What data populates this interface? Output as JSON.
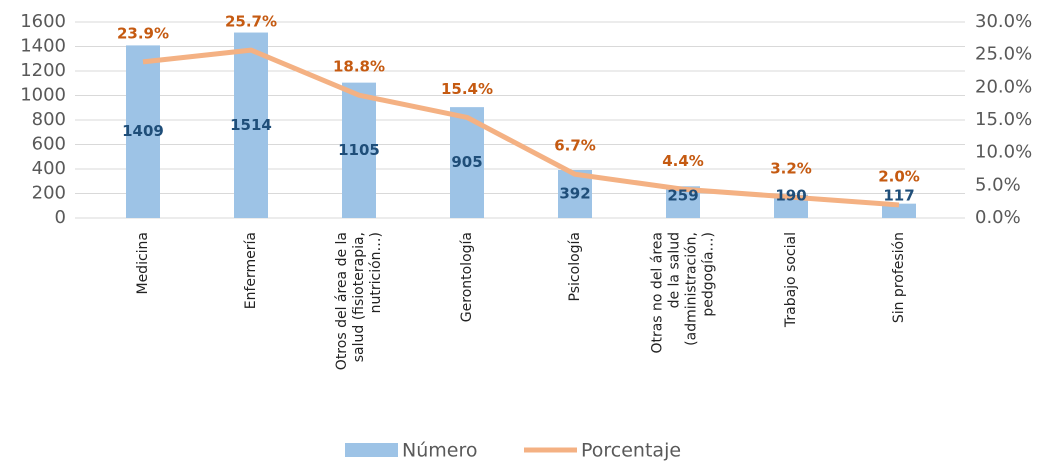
{
  "chart_data": {
    "type": "bar_line",
    "categories": [
      "Medicina",
      "Enfermería",
      "Otros del área de la\nsalud (fisioterapia,\nnutrición…)",
      "Gerontología",
      "Psicología",
      "Otras no del área\nde la salud\n(administración,\npedgogía…)",
      "Trabajo social",
      "Sin profesión"
    ],
    "series": [
      {
        "name": "Número",
        "color": "#9dc3e6",
        "type": "bar",
        "values": [
          1409,
          1514,
          1105,
          905,
          392,
          259,
          190,
          117
        ]
      },
      {
        "name": "Porcentaje",
        "color": "#f4b183",
        "type": "line",
        "axis": "y2",
        "values": [
          23.9,
          25.7,
          18.8,
          15.4,
          6.7,
          4.4,
          3.2,
          2.0
        ],
        "value_labels": [
          "23.9%",
          "25.7%",
          "18.8%",
          "15.4%",
          "6.7%",
          "4.4%",
          "3.2%",
          "2.0%"
        ]
      }
    ],
    "ylim": [
      0,
      1600
    ],
    "yticks": [
      0,
      200,
      400,
      600,
      800,
      1000,
      1200,
      1400,
      1600
    ],
    "y2lim": [
      0,
      30
    ],
    "y2ticks": [
      {
        "value": 0,
        "label": "0.0%"
      },
      {
        "value": 5,
        "label": "5.0%"
      },
      {
        "value": 10,
        "label": "10.0%"
      },
      {
        "value": 15,
        "label": "15.0%"
      },
      {
        "value": 20,
        "label": "20.0%"
      },
      {
        "value": 25,
        "label": "25.0%"
      },
      {
        "value": 30,
        "label": "30.0%"
      }
    ],
    "grid": true,
    "legend": "bottom"
  }
}
